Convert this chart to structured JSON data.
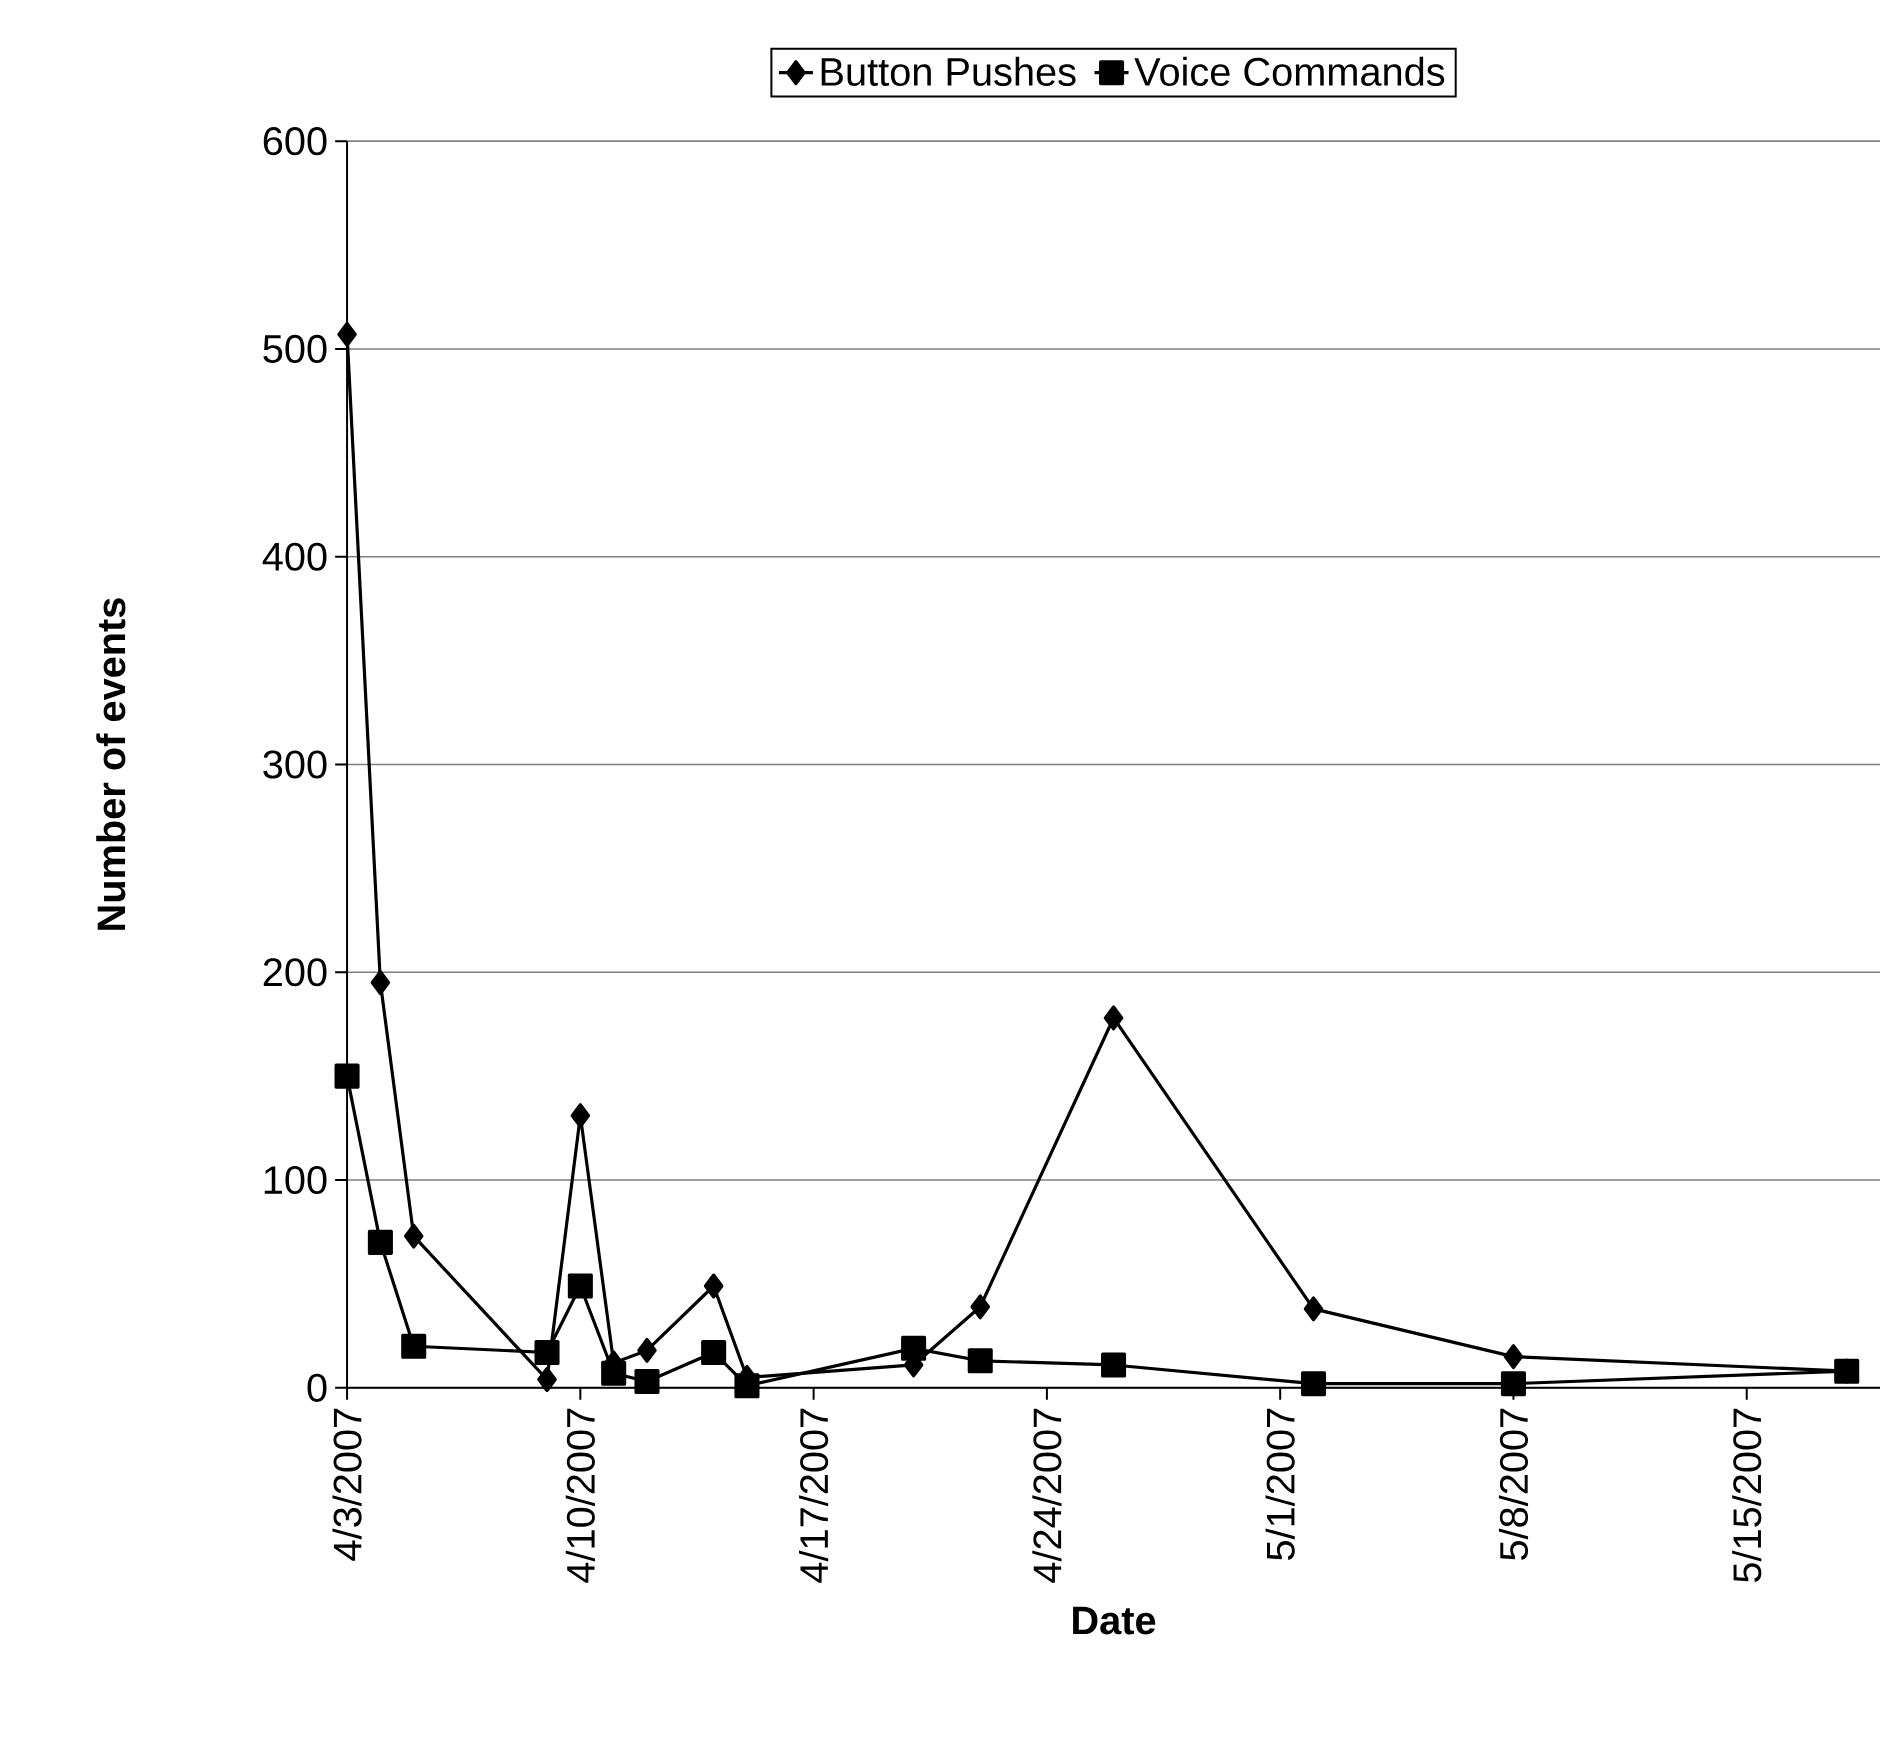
{
  "chart_data": {
    "type": "line",
    "xlabel": "Date",
    "ylabel": "Number of events",
    "x": [
      "2007-04-03",
      "2007-04-04",
      "2007-04-05",
      "2007-04-09",
      "2007-04-10",
      "2007-04-11",
      "2007-04-12",
      "2007-04-14",
      "2007-04-15",
      "2007-04-20",
      "2007-04-22",
      "2007-04-26",
      "2007-05-02",
      "2007-05-08",
      "2007-05-18"
    ],
    "series": [
      {
        "name": "Button Pushes",
        "color": "#000000",
        "marker": "diamond",
        "values": [
          507,
          195,
          73,
          4,
          131,
          12,
          18,
          49,
          5,
          11,
          39,
          178,
          38,
          15,
          8
        ]
      },
      {
        "name": "Voice Commands",
        "color": "#000000",
        "marker": "square",
        "values": [
          150,
          70,
          20,
          17,
          49,
          7,
          3,
          17,
          1,
          19,
          13,
          11,
          2,
          2,
          8
        ]
      }
    ],
    "xlim": [
      "2007-04-03",
      "2007-05-19"
    ],
    "xticks": [
      {
        "value": "2007-04-03",
        "label": "4/3/2007"
      },
      {
        "value": "2007-04-10",
        "label": "4/10/2007"
      },
      {
        "value": "2007-04-17",
        "label": "4/17/2007"
      },
      {
        "value": "2007-04-24",
        "label": "4/24/2007"
      },
      {
        "value": "2007-05-01",
        "label": "5/1/2007"
      },
      {
        "value": "2007-05-08",
        "label": "5/8/2007"
      },
      {
        "value": "2007-05-15",
        "label": "5/15/2007"
      }
    ],
    "ylim": [
      0,
      600
    ],
    "yticks": [
      0,
      100,
      200,
      300,
      400,
      500,
      600
    ],
    "grid": "y",
    "legend": "top",
    "line_style": "solid"
  }
}
